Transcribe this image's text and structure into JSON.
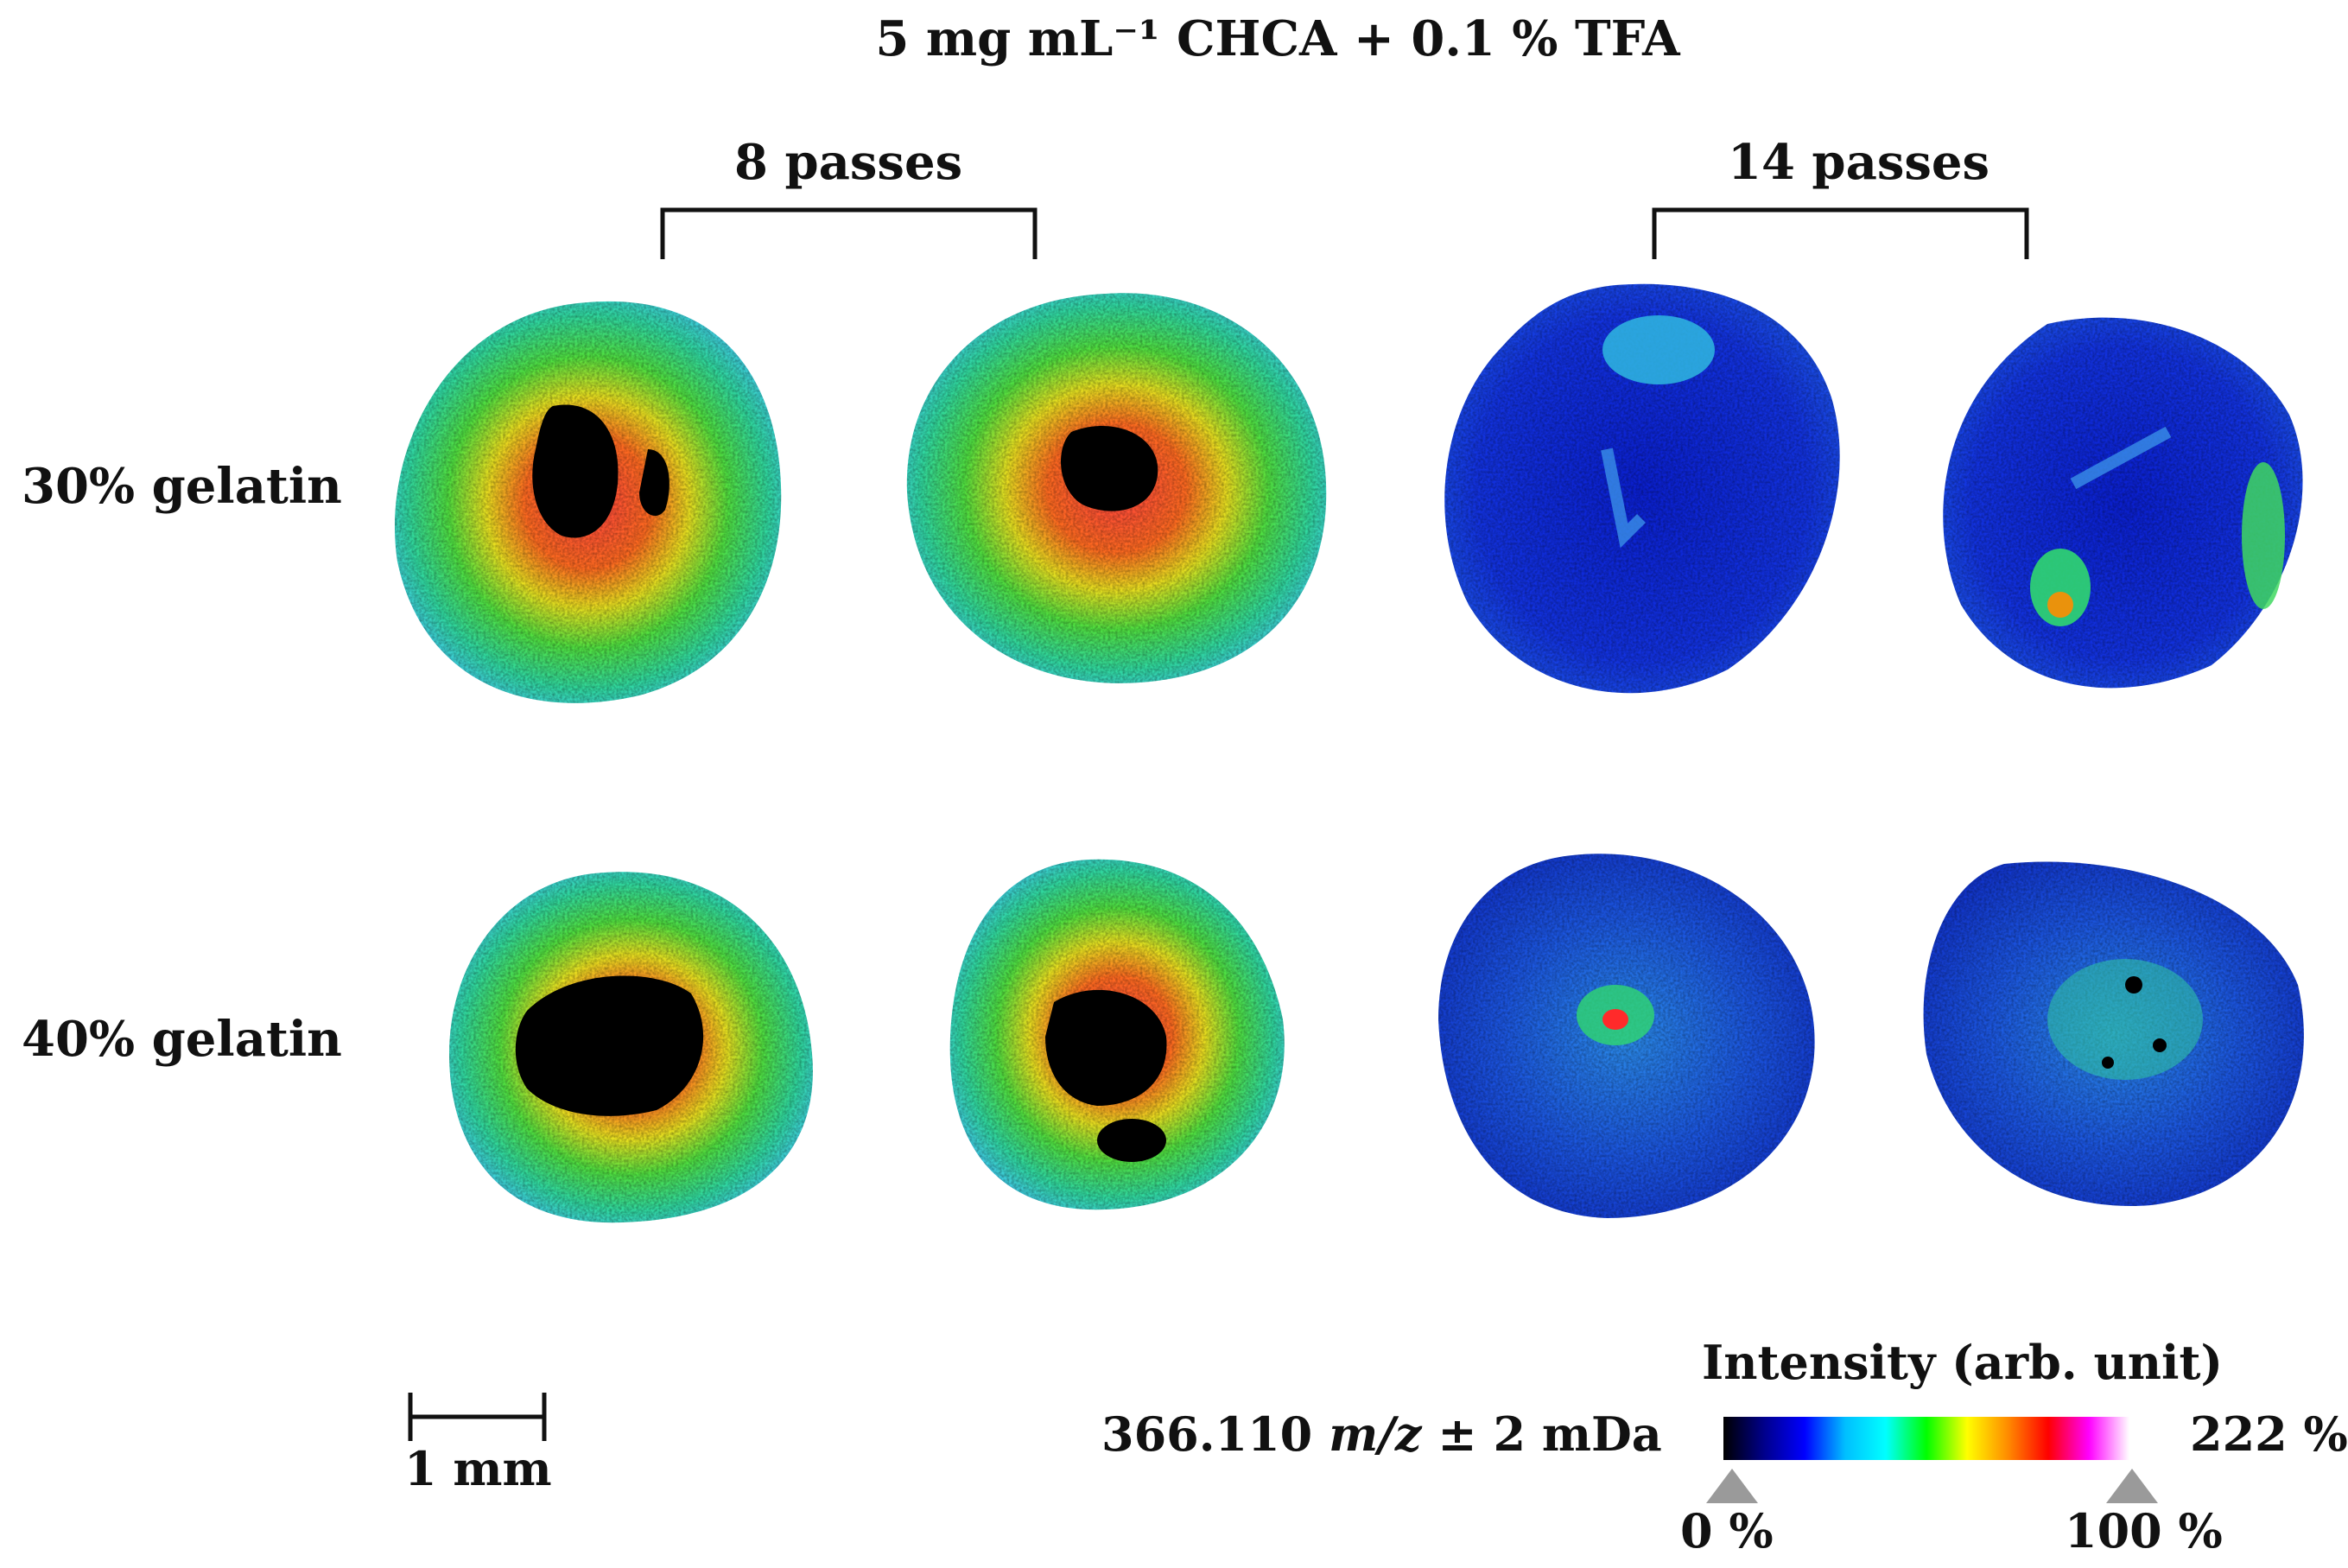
{
  "title": "5 mg mL⁻¹ CHCA + 0.1 % TFA",
  "columns": [
    {
      "label": "8 passes"
    },
    {
      "label": "14 passes"
    }
  ],
  "rows": [
    {
      "label": "30% gelatin"
    },
    {
      "label": "40% gelatin"
    }
  ],
  "panels": [
    {
      "row": "30% gelatin",
      "group": "8 passes",
      "replicate": 1,
      "pattern": "high-ring-dark-core"
    },
    {
      "row": "30% gelatin",
      "group": "8 passes",
      "replicate": 2,
      "pattern": "high-ring-dark-core"
    },
    {
      "row": "30% gelatin",
      "group": "14 passes",
      "replicate": 1,
      "pattern": "low-blue"
    },
    {
      "row": "30% gelatin",
      "group": "14 passes",
      "replicate": 2,
      "pattern": "low-blue"
    },
    {
      "row": "40% gelatin",
      "group": "8 passes",
      "replicate": 1,
      "pattern": "high-ring-dark-core"
    },
    {
      "row": "40% gelatin",
      "group": "8 passes",
      "replicate": 2,
      "pattern": "high-ring-dark-core"
    },
    {
      "row": "40% gelatin",
      "group": "14 passes",
      "replicate": 1,
      "pattern": "low-blue"
    },
    {
      "row": "40% gelatin",
      "group": "14 passes",
      "replicate": 2,
      "pattern": "low-blue"
    }
  ],
  "scalebar": {
    "label": "1 mm"
  },
  "mz_label": {
    "value": "366.110",
    "unit": "m/z",
    "tolerance": "± 2 mDa"
  },
  "colorbar": {
    "title": "Intensity (arb. unit)",
    "max_label": "222 %",
    "low_marker": "0 %",
    "high_marker": "100 %",
    "colors": [
      "#000000",
      "#00008b",
      "#0000ff",
      "#00bfff",
      "#00ffff",
      "#00ff00",
      "#ffff00",
      "#ff8c00",
      "#ff0000",
      "#ff00ff",
      "#ffffff"
    ]
  },
  "colors": {
    "low": "#1a2bd8",
    "mid": "#22d3a8",
    "high": "#ff2a2a",
    "core": "#000000",
    "marker": "#9a9a9a"
  }
}
